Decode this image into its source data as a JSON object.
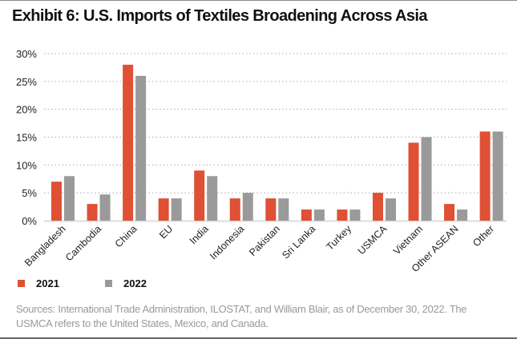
{
  "title": "Exhibit 6: U.S. Imports of Textiles Broadening Across Asia",
  "source": "Sources: International Trade Administration, ILOSTAT, and William Blair, as of December 30, 2022. The USMCA refers to the United States, Mexico, and Canada.",
  "colors": {
    "2021": "#df5035",
    "2022": "#9a9a9a"
  },
  "chart_data": {
    "type": "bar",
    "title": "Exhibit 6: U.S. Imports of Textiles Broadening Across Asia",
    "xlabel": "",
    "ylabel": "",
    "ylim": [
      0,
      30
    ],
    "yticks": [
      "0%",
      "5%",
      "10%",
      "15%",
      "20%",
      "25%",
      "30%"
    ],
    "grid": "horizontal dotted",
    "legend": "bottom-left",
    "categories": [
      "Bangladesh",
      "Cambodia",
      "China",
      "EU",
      "India",
      "Indonesia",
      "Pakistan",
      "Sri Lanka",
      "Turkey",
      "USMCA",
      "Vietnam",
      "Other ASEAN",
      "Other"
    ],
    "series": [
      {
        "name": "2021",
        "color": "#df5035",
        "values": [
          7,
          3,
          28,
          4,
          9,
          4,
          4,
          2,
          2,
          5,
          14,
          3,
          16
        ]
      },
      {
        "name": "2022",
        "color": "#9a9a9a",
        "values": [
          8,
          4.7,
          26,
          4,
          8,
          5,
          4,
          2,
          2,
          4,
          15,
          2,
          16
        ]
      }
    ]
  }
}
